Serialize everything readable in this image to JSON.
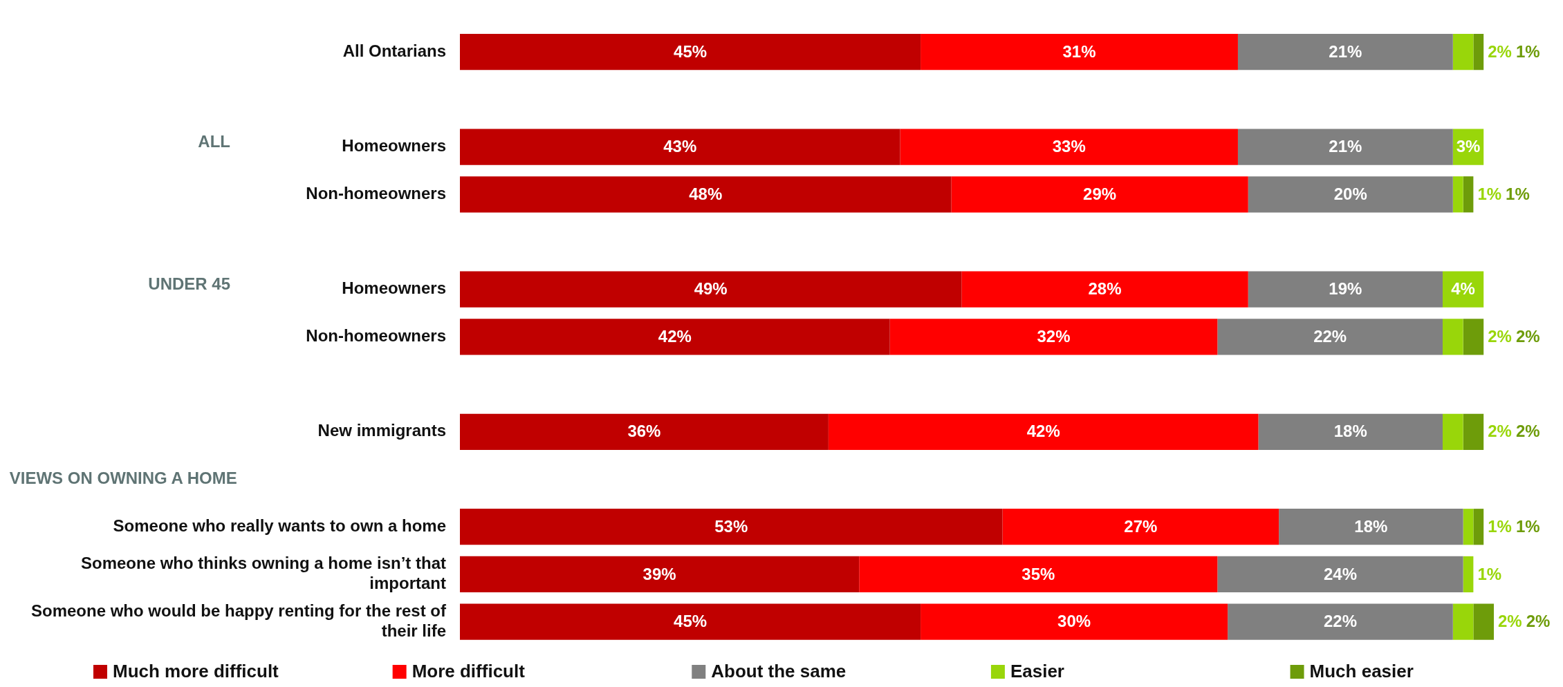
{
  "chart_data": {
    "type": "bar",
    "orientation": "horizontal",
    "stacked": true,
    "legend": "bottom",
    "categories": [
      "All Ontarians",
      null,
      "Homeowners",
      "Non-homeowners",
      null,
      "Homeowners",
      "Non-homeowners",
      null,
      "New immigrants",
      null,
      "Someone who really wants to own a home",
      "Someone who thinks owning a home isn’t that important",
      "Someone who would be happy renting for the rest of their life"
    ],
    "annotations": [
      "ALL",
      "UNDER 45",
      "VIEWS ON OWNING A HOME"
    ],
    "series": [
      {
        "name": "Much more difficult",
        "color": "#c00000",
        "values": [
          45,
          null,
          43,
          48,
          null,
          49,
          42,
          null,
          36,
          null,
          53,
          39,
          45
        ],
        "value_labels": [
          "45%",
          null,
          "43%",
          "48%",
          null,
          "49%",
          "42%",
          null,
          "36%",
          null,
          "53%",
          "39%",
          "45%"
        ]
      },
      {
        "name": "More difficult",
        "color": "#ff0000",
        "values": [
          31,
          null,
          33,
          29,
          null,
          28,
          32,
          null,
          42,
          null,
          27,
          35,
          30
        ],
        "value_labels": [
          "31%",
          null,
          "33%",
          "29%",
          null,
          "28%",
          "32%",
          null,
          "42%",
          null,
          "27%",
          "35%",
          "30%"
        ]
      },
      {
        "name": "About the same",
        "color": "#808080",
        "values": [
          21,
          null,
          21,
          20,
          null,
          19,
          22,
          null,
          18,
          null,
          18,
          24,
          22
        ],
        "value_labels": [
          "21%",
          null,
          "21%",
          "20%",
          null,
          "19%",
          "22%",
          null,
          "18%",
          null,
          "18%",
          "24%",
          "22%"
        ]
      },
      {
        "name": "Easier",
        "color": "#99d60a",
        "values": [
          2,
          null,
          3,
          1,
          null,
          4,
          2,
          null,
          2,
          null,
          1,
          1,
          2
        ],
        "value_labels": [
          "2%",
          null,
          "3%",
          "1%",
          null,
          "4%",
          "2%",
          null,
          "2%",
          null,
          "1%",
          "1%",
          "2%"
        ]
      },
      {
        "name": "Much easier",
        "color": "#6e9c0a",
        "values": [
          1,
          null,
          null,
          1,
          null,
          null,
          2,
          null,
          2,
          null,
          1,
          null,
          2
        ],
        "value_labels": [
          "1%",
          null,
          null,
          "1%",
          null,
          null,
          "2%",
          null,
          "2%",
          null,
          "1%",
          null,
          "2%"
        ]
      }
    ]
  }
}
